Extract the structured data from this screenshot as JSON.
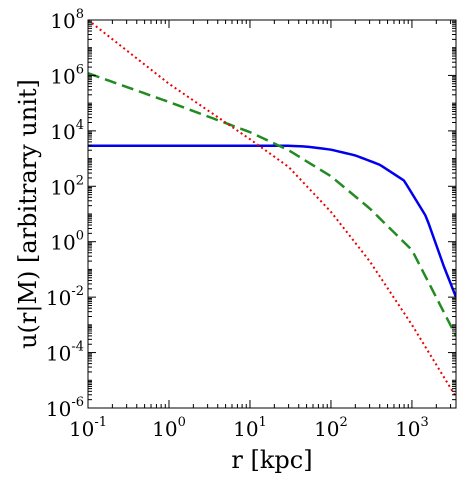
{
  "chart_data": {
    "type": "line",
    "xscale": "log",
    "yscale": "log",
    "xlim": [
      0.1,
      3500
    ],
    "ylim": [
      1e-06,
      100000000.0
    ],
    "grid": false,
    "xlabel": "r [kpc]",
    "ylabel": "u(r|M) [arbitrary unit]",
    "x_ticks": [
      {
        "base": "10",
        "exp": "-1",
        "value": 0.1
      },
      {
        "base": "10",
        "exp": "0",
        "value": 1
      },
      {
        "base": "10",
        "exp": "1",
        "value": 10
      },
      {
        "base": "10",
        "exp": "2",
        "value": 100
      },
      {
        "base": "10",
        "exp": "3",
        "value": 1000
      }
    ],
    "y_ticks": [
      {
        "base": "10",
        "exp": "-6",
        "value": 1e-06
      },
      {
        "base": "10",
        "exp": "-4",
        "value": 0.0001
      },
      {
        "base": "10",
        "exp": "-2",
        "value": 0.01
      },
      {
        "base": "10",
        "exp": "0",
        "value": 1
      },
      {
        "base": "10",
        "exp": "2",
        "value": 100.0
      },
      {
        "base": "10",
        "exp": "4",
        "value": 10000.0
      },
      {
        "base": "10",
        "exp": "6",
        "value": 1000000.0
      },
      {
        "base": "10",
        "exp": "8",
        "value": 100000000.0
      }
    ],
    "series": [
      {
        "color": "#0000ee",
        "style": "solid",
        "x": [
          0.1,
          1,
          10,
          30,
          50,
          100,
          200,
          400,
          800,
          1500,
          2500,
          3500
        ],
        "y": [
          2900,
          2900,
          2900,
          2900,
          2700,
          2100,
          1300,
          600,
          160,
          8,
          0.12,
          0.01
        ]
      },
      {
        "color": "#228b22",
        "style": "dashed",
        "x": [
          0.1,
          1,
          10,
          30,
          100,
          300,
          1000,
          3500
        ],
        "y": [
          1200000.0,
          110000.0,
          9000,
          2000,
          230,
          16,
          0.5,
          0.0004
        ]
      },
      {
        "color": "#ee0000",
        "style": "dotted",
        "x": [
          0.1,
          1,
          10,
          30,
          100,
          300,
          1000,
          3500
        ],
        "y": [
          100000000.0,
          500000.0,
          5000,
          500,
          12,
          0.2,
          0.001,
          2.5e-06
        ]
      }
    ]
  }
}
